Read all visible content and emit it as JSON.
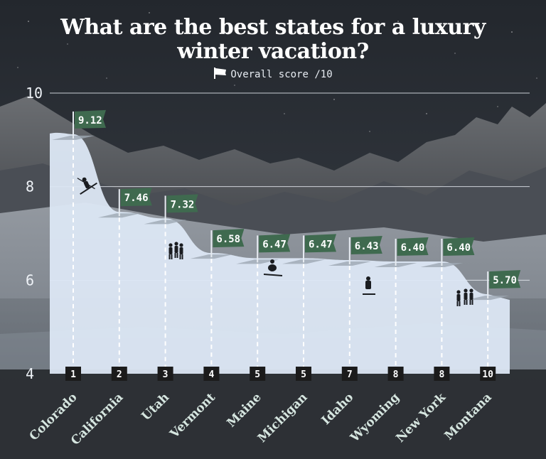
{
  "title_line1": "What are the best states for a luxury",
  "title_line2": "winter vacation?",
  "legend_label": "Overall score /10",
  "colors": {
    "flag": "#3f6a4f",
    "area": "#dce7f4",
    "rank_box": "#1b1b1b",
    "gridline": "#e6ebf1",
    "label_text": "#d6e6e0"
  },
  "chart_data": {
    "type": "area",
    "title": "What are the best states for a luxury winter vacation?",
    "xlabel": "",
    "ylabel": "",
    "ylim": [
      4,
      10
    ],
    "yticks": [
      4,
      6,
      8,
      10
    ],
    "grid": true,
    "legend": "top-center",
    "series": [
      {
        "name": "Overall score /10",
        "categories": [
          "Colorado",
          "California",
          "Utah",
          "Vermont",
          "Maine",
          "Michigan",
          "Idaho",
          "Wyoming",
          "New York",
          "Montana"
        ],
        "values": [
          9.12,
          7.46,
          7.32,
          6.58,
          6.47,
          6.47,
          6.43,
          6.4,
          6.4,
          5.7
        ],
        "value_labels": [
          "9.12",
          "7.46",
          "7.32",
          "6.58",
          "6.47",
          "6.47",
          "6.43",
          "6.40",
          "6.40",
          "5.70"
        ],
        "ranks": [
          "1",
          "2",
          "3",
          "4",
          "5",
          "5",
          "7",
          "8",
          "8",
          "10"
        ]
      }
    ]
  }
}
